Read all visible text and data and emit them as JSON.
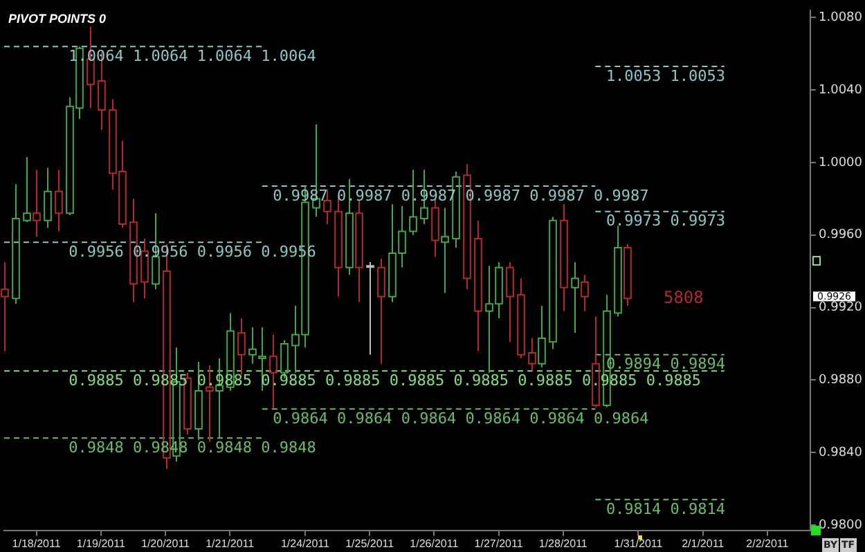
{
  "chart_data": {
    "type": "candlestick",
    "title": "PIVOT POINTS 0",
    "categories": [
      null,
      null,
      null,
      "1/18/2011",
      null,
      null,
      null,
      null,
      null,
      "1/19/2011",
      null,
      null,
      null,
      null,
      null,
      "1/20/2011",
      null,
      null,
      null,
      null,
      null,
      "1/21/2011",
      null,
      null,
      null,
      null,
      null,
      null,
      "1/24/2011",
      null,
      null,
      null,
      null,
      null,
      "1/25/2011",
      null,
      null,
      null,
      null,
      null,
      "1/26/2011",
      null,
      null,
      null,
      null,
      null,
      "1/27/2011",
      null,
      null,
      null,
      null,
      null,
      "1/28/2011",
      null,
      null,
      null,
      null,
      null,
      null,
      "1/31/2011",
      null,
      null,
      null,
      null,
      null,
      "2/1/2011",
      null,
      null,
      null,
      null,
      null,
      "2/2/2011",
      null,
      null,
      null,
      null
    ],
    "ohlc": [
      [
        0.993,
        0.9945,
        0.9896,
        0.9926
      ],
      [
        0.9925,
        0.9988,
        0.9922,
        0.9969
      ],
      [
        0.9968,
        1.0003,
        0.9967,
        0.9972
      ],
      [
        0.9972,
        0.9996,
        0.9959,
        0.9968
      ],
      [
        0.9968,
        0.9997,
        0.9964,
        0.9984
      ],
      [
        0.9984,
        0.9996,
        0.9962,
        0.9972
      ],
      [
        0.9972,
        1.0036,
        0.9971,
        1.0031
      ],
      [
        1.003,
        1.0064,
        1.0024,
        1.0063
      ],
      [
        1.0057,
        1.0075,
        1.003,
        1.0043
      ],
      [
        1.0045,
        1.0061,
        1.0018,
        1.0029
      ],
      [
        1.0029,
        1.0035,
        0.9985,
        0.9994
      ],
      [
        0.9995,
        1.0012,
        0.9964,
        0.9966
      ],
      [
        0.9967,
        0.998,
        0.9923,
        0.9933
      ],
      [
        0.9951,
        0.9958,
        0.9925,
        0.9934
      ],
      [
        0.9933,
        0.9972,
        0.993,
        0.9948
      ],
      [
        0.994,
        0.9955,
        0.9831,
        0.9837
      ],
      [
        0.9838,
        0.9898,
        0.9835,
        0.9879
      ],
      [
        0.9881,
        0.9884,
        0.985,
        0.9853
      ],
      [
        0.9853,
        0.989,
        0.9847,
        0.9874
      ],
      [
        0.9876,
        0.9888,
        0.9846,
        0.9874
      ],
      [
        0.9874,
        0.9892,
        0.9848,
        0.9877
      ],
      [
        0.9876,
        0.9917,
        0.9874,
        0.9907
      ],
      [
        0.9906,
        0.9914,
        0.9883,
        0.9894
      ],
      [
        0.9894,
        0.9909,
        0.9889,
        0.9897
      ],
      [
        0.9892,
        0.9909,
        0.9874,
        0.9893
      ],
      [
        0.9893,
        0.9905,
        0.9864,
        0.9884
      ],
      [
        0.9884,
        0.9902,
        0.9881,
        0.99
      ],
      [
        0.9899,
        0.9921,
        0.9884,
        0.9905
      ],
      [
        0.9905,
        0.9987,
        0.9898,
        0.9978
      ],
      [
        0.9975,
        1.0021,
        0.997,
        0.998
      ],
      [
        0.9979,
        0.9985,
        0.9966,
        0.9973
      ],
      [
        0.9973,
        0.9982,
        0.9926,
        0.9942
      ],
      [
        0.9942,
        0.9991,
        0.9938,
        0.9972
      ],
      [
        0.9972,
        0.9979,
        0.9923,
        0.9942
      ],
      [
        0.9943,
        0.9945,
        0.9894,
        0.9943
      ],
      [
        0.9942,
        0.9947,
        0.9889,
        0.9926
      ],
      [
        0.9926,
        0.9977,
        0.9923,
        0.995
      ],
      [
        0.995,
        0.9976,
        0.9942,
        0.9962
      ],
      [
        0.9962,
        0.9996,
        0.996,
        0.997
      ],
      [
        0.9969,
        0.9996,
        0.9966,
        0.9975
      ],
      [
        0.9975,
        0.998,
        0.9948,
        0.9957
      ],
      [
        0.9956,
        0.9975,
        0.9928,
        0.9959
      ],
      [
        0.9958,
        0.9995,
        0.9953,
        0.9992
      ],
      [
        0.9993,
        0.9999,
        0.993,
        0.9936
      ],
      [
        0.9958,
        0.9968,
        0.9896,
        0.9918
      ],
      [
        0.9918,
        0.9943,
        0.9884,
        0.9922
      ],
      [
        0.9922,
        0.9945,
        0.9914,
        0.9942
      ],
      [
        0.9942,
        0.9945,
        0.9901,
        0.9926
      ],
      [
        0.9927,
        0.9936,
        0.9892,
        0.9894
      ],
      [
        0.9895,
        0.9903,
        0.9885,
        0.9889
      ],
      [
        0.9889,
        0.9921,
        0.9887,
        0.9903
      ],
      [
        0.9901,
        0.997,
        0.9897,
        0.9968
      ],
      [
        0.9968,
        0.9977,
        0.9918,
        0.9931
      ],
      [
        0.9931,
        0.9945,
        0.9906,
        0.9936
      ],
      [
        0.9934,
        0.9938,
        0.9918,
        0.9926
      ],
      [
        0.9889,
        0.9915,
        0.9865,
        0.9866
      ],
      [
        0.9866,
        0.9927,
        0.9865,
        0.9918
      ],
      [
        0.9917,
        0.9965,
        0.9915,
        0.9953
      ],
      [
        0.9953,
        0.9955,
        0.9921,
        0.9925
      ],
      null,
      null,
      null,
      null,
      null,
      null,
      null,
      null,
      null,
      null,
      null,
      null,
      null,
      null,
      null,
      null,
      null
    ],
    "colors": [
      "#b52a2a",
      "#44a844",
      "#44a844",
      "#b52a2a",
      "#44a844",
      "#b52a2a",
      "#44a844",
      "#44a844",
      "#b52a2a",
      "#b52a2a",
      "#b52a2a",
      "#b52a2a",
      "#b52a2a",
      "#b52a2a",
      "#44a844",
      "#b52a2a",
      "#44a844",
      "#b52a2a",
      "#44a844",
      "#b52a2a",
      "#44a844",
      "#44a844",
      "#b52a2a",
      "#44a844",
      "#44a844",
      "#b52a2a",
      "#44a844",
      "#44a844",
      "#44a844",
      "#44a844",
      "#b52a2a",
      "#b52a2a",
      "#44a844",
      "#b52a2a",
      "#bbbbbb",
      "#b52a2a",
      "#44a844",
      "#44a844",
      "#44a844",
      "#44a844",
      "#b52a2a",
      "#44a844",
      "#44a844",
      "#b52a2a",
      "#b52a2a",
      "#44a844",
      "#44a844",
      "#b52a2a",
      "#b52a2a",
      "#b52a2a",
      "#44a844",
      "#44a844",
      "#b52a2a",
      "#44a844",
      "#b52a2a",
      "#b52a2a",
      "#44a844",
      "#44a844",
      "#b52a2a",
      null,
      null,
      null,
      null,
      null,
      null,
      null,
      null,
      null,
      null,
      null,
      null,
      null,
      null,
      null,
      null,
      null
    ],
    "series": [
      {
        "type": "line",
        "color": "#8cc8c8",
        "line_style": "dashed",
        "values": [
          1.0064,
          1.0064,
          1.0064,
          1.0064,
          1.0064,
          1.0064,
          1.0064,
          1.0064,
          1.0064,
          1.0064,
          1.0064,
          1.0064,
          1.0064,
          1.0064,
          1.0064,
          1.0064,
          1.0064,
          1.0064,
          1.0064,
          1.0064,
          1.0064,
          1.0064,
          1.0064,
          1.0064,
          1.0064,
          null,
          null,
          null,
          null,
          null,
          null,
          null,
          null,
          null,
          null,
          null,
          null,
          null,
          null,
          null,
          null,
          null,
          null,
          null,
          null,
          null,
          null,
          null,
          null,
          null,
          null,
          null,
          null,
          null,
          null,
          null,
          null,
          null,
          null,
          null,
          null,
          null,
          null,
          null,
          null,
          null,
          null,
          null,
          null,
          null,
          null,
          null,
          null,
          null,
          null,
          null
        ],
        "value_labels": [
          null,
          null,
          null,
          null,
          null,
          null,
          "1.0064 1.0064 1.0064 1.0064",
          null,
          null,
          null,
          null,
          null,
          null,
          null,
          null,
          null,
          null,
          null,
          null,
          null,
          null,
          null,
          null,
          null,
          null,
          null,
          null,
          null,
          null,
          null,
          null,
          null,
          null,
          null,
          null,
          null,
          null,
          null,
          null,
          null,
          null,
          null,
          null,
          null,
          null,
          null,
          null,
          null,
          null,
          null,
          null,
          null,
          null,
          null,
          null,
          null,
          null,
          null,
          null,
          null,
          null,
          null,
          null,
          null,
          null,
          null,
          null,
          null,
          null,
          null,
          null,
          null,
          null,
          null,
          null,
          null
        ]
      },
      {
        "type": "line",
        "color": "#8cc8c8",
        "line_style": "dashed",
        "values": [
          0.9956,
          0.9956,
          0.9956,
          0.9956,
          0.9956,
          0.9956,
          0.9956,
          0.9956,
          0.9956,
          0.9956,
          0.9956,
          0.9956,
          0.9956,
          0.9956,
          0.9956,
          0.9956,
          0.9956,
          0.9956,
          0.9956,
          0.9956,
          0.9956,
          0.9956,
          0.9956,
          0.9956,
          0.9956,
          null,
          null,
          null,
          null,
          null,
          null,
          null,
          null,
          null,
          null,
          null,
          null,
          null,
          null,
          null,
          null,
          null,
          null,
          null,
          null,
          null,
          null,
          null,
          null,
          null,
          null,
          null,
          null,
          null,
          null,
          null,
          null,
          null,
          null,
          null,
          null,
          null,
          null,
          null,
          null,
          null,
          null,
          null,
          null,
          null,
          null,
          null,
          null,
          null,
          null,
          null
        ],
        "value_labels": [
          null,
          null,
          null,
          null,
          null,
          null,
          "0.9956 0.9956 0.9956 0.9956",
          null,
          null,
          null,
          null,
          null,
          null,
          null,
          null,
          null,
          null,
          null,
          null,
          null,
          null,
          null,
          null,
          null,
          null,
          null,
          null,
          null,
          null,
          null,
          null,
          null,
          null,
          null,
          null,
          null,
          null,
          null,
          null,
          null,
          null,
          null,
          null,
          null,
          null,
          null,
          null,
          null,
          null,
          null,
          null,
          null,
          null,
          null,
          null,
          null,
          null,
          null,
          null,
          null,
          null,
          null,
          null,
          null,
          null,
          null,
          null,
          null,
          null,
          null,
          null,
          null,
          null,
          null,
          null,
          null
        ]
      },
      {
        "type": "line",
        "color": "#8cc8c8",
        "line_style": "dashed",
        "values": [
          null,
          null,
          null,
          null,
          null,
          null,
          null,
          null,
          null,
          null,
          null,
          null,
          null,
          null,
          null,
          null,
          null,
          null,
          null,
          null,
          null,
          null,
          null,
          null,
          0.9987,
          0.9987,
          0.9987,
          0.9987,
          0.9987,
          0.9987,
          0.9987,
          0.9987,
          0.9987,
          0.9987,
          0.9987,
          0.9987,
          0.9987,
          0.9987,
          0.9987,
          0.9987,
          0.9987,
          0.9987,
          0.9987,
          0.9987,
          0.9987,
          0.9987,
          0.9987,
          0.9987,
          0.9987,
          0.9987,
          0.9987,
          0.9987,
          0.9987,
          0.9987,
          0.9987,
          0.9987,
          null,
          null,
          null,
          null,
          null,
          null,
          null,
          null,
          null,
          null,
          null,
          null,
          null,
          null,
          null,
          null,
          null,
          null,
          null,
          null
        ],
        "value_labels": [
          null,
          null,
          null,
          null,
          null,
          null,
          null,
          null,
          null,
          null,
          null,
          null,
          null,
          null,
          null,
          null,
          null,
          null,
          null,
          null,
          null,
          null,
          null,
          null,
          null,
          "0.9987 0.9987 0.9987 0.9987 0.9987 0.9987",
          null,
          null,
          null,
          null,
          null,
          null,
          null,
          null,
          null,
          null,
          null,
          null,
          null,
          null,
          null,
          null,
          null,
          null,
          null,
          null,
          null,
          null,
          null,
          null,
          null,
          null,
          null,
          null,
          null,
          null,
          null,
          null,
          null,
          null,
          null,
          null,
          null,
          null,
          null,
          null,
          null,
          null,
          null,
          null,
          null,
          null,
          null,
          null,
          null,
          null
        ]
      },
      {
        "type": "line",
        "color": "#8cc8c8",
        "line_style": "dashed",
        "values": [
          null,
          null,
          null,
          null,
          null,
          null,
          null,
          null,
          null,
          null,
          null,
          null,
          null,
          null,
          null,
          null,
          null,
          null,
          null,
          null,
          null,
          null,
          null,
          null,
          null,
          null,
          null,
          null,
          null,
          null,
          null,
          null,
          null,
          null,
          null,
          null,
          null,
          null,
          null,
          null,
          null,
          null,
          null,
          null,
          null,
          null,
          null,
          null,
          null,
          null,
          null,
          null,
          null,
          null,
          null,
          1.0053,
          1.0053,
          1.0053,
          1.0053,
          1.0053,
          1.0053,
          1.0053,
          1.0053,
          1.0053,
          1.0053,
          1.0053,
          1.0053,
          1.0053,
          null,
          null,
          null,
          null,
          null,
          null,
          null,
          null
        ],
        "value_labels": [
          null,
          null,
          null,
          null,
          null,
          null,
          null,
          null,
          null,
          null,
          null,
          null,
          null,
          null,
          null,
          null,
          null,
          null,
          null,
          null,
          null,
          null,
          null,
          null,
          null,
          null,
          null,
          null,
          null,
          null,
          null,
          null,
          null,
          null,
          null,
          null,
          null,
          null,
          null,
          null,
          null,
          null,
          null,
          null,
          null,
          null,
          null,
          null,
          null,
          null,
          null,
          null,
          null,
          null,
          null,
          null,
          "1.0053 1.0053",
          null,
          null,
          null,
          null,
          null,
          null,
          null,
          null,
          null,
          null,
          null,
          null,
          null,
          null,
          null,
          null,
          null,
          null,
          null
        ]
      },
      {
        "type": "line",
        "color": "#8cc8c8",
        "line_style": "dashed",
        "values": [
          null,
          null,
          null,
          null,
          null,
          null,
          null,
          null,
          null,
          null,
          null,
          null,
          null,
          null,
          null,
          null,
          null,
          null,
          null,
          null,
          null,
          null,
          null,
          null,
          null,
          null,
          null,
          null,
          null,
          null,
          null,
          null,
          null,
          null,
          null,
          null,
          null,
          null,
          null,
          null,
          null,
          null,
          null,
          null,
          null,
          null,
          null,
          null,
          null,
          null,
          null,
          null,
          null,
          null,
          null,
          0.9973,
          0.9973,
          0.9973,
          0.9973,
          0.9973,
          0.9973,
          0.9973,
          0.9973,
          0.9973,
          0.9973,
          0.9973,
          0.9973,
          0.9973,
          null,
          null,
          null,
          null,
          null,
          null,
          null,
          null
        ],
        "value_labels": [
          null,
          null,
          null,
          null,
          null,
          null,
          null,
          null,
          null,
          null,
          null,
          null,
          null,
          null,
          null,
          null,
          null,
          null,
          null,
          null,
          null,
          null,
          null,
          null,
          null,
          null,
          null,
          null,
          null,
          null,
          null,
          null,
          null,
          null,
          null,
          null,
          null,
          null,
          null,
          null,
          null,
          null,
          null,
          null,
          null,
          null,
          null,
          null,
          null,
          null,
          null,
          null,
          null,
          null,
          null,
          null,
          "0.9973 0.9973",
          null,
          null,
          null,
          null,
          null,
          null,
          null,
          null,
          null,
          null,
          null,
          null,
          null,
          null,
          null,
          null,
          null,
          null,
          null
        ]
      },
      {
        "type": "line",
        "color": "#80e080",
        "line_style": "dashed",
        "values": [
          0.9885,
          0.9885,
          0.9885,
          0.9885,
          0.9885,
          0.9885,
          0.9885,
          0.9885,
          0.9885,
          0.9885,
          0.9885,
          0.9885,
          0.9885,
          0.9885,
          0.9885,
          0.9885,
          0.9885,
          0.9885,
          0.9885,
          0.9885,
          0.9885,
          0.9885,
          0.9885,
          0.9885,
          0.9885,
          0.9885,
          0.9885,
          0.9885,
          0.9885,
          0.9885,
          0.9885,
          0.9885,
          0.9885,
          0.9885,
          0.9885,
          0.9885,
          0.9885,
          0.9885,
          0.9885,
          0.9885,
          0.9885,
          0.9885,
          0.9885,
          0.9885,
          0.9885,
          0.9885,
          0.9885,
          0.9885,
          0.9885,
          0.9885,
          0.9885,
          0.9885,
          0.9885,
          0.9885,
          0.9885,
          0.9885,
          0.9885,
          0.9885,
          0.9885,
          0.9885,
          0.9885,
          0.9885,
          0.9885,
          0.9885,
          0.9885,
          0.9885,
          0.9885,
          0.9885,
          null,
          null,
          null,
          null,
          null,
          null,
          null,
          null
        ],
        "value_labels": [
          null,
          null,
          null,
          null,
          null,
          null,
          "0.9885 0.9885 0.9885 0.9885 0.9885 0.9885 0.9885 0.9885 0.9885 0.9885",
          null,
          null,
          null,
          null,
          null,
          null,
          null,
          null,
          null,
          null,
          null,
          null,
          null,
          null,
          null,
          null,
          null,
          null,
          null,
          null,
          null,
          null,
          null,
          null,
          null,
          null,
          null,
          null,
          null,
          null,
          null,
          null,
          null,
          null,
          null,
          null,
          null,
          null,
          null,
          null,
          null,
          null,
          null,
          null,
          null,
          null,
          null,
          null,
          null,
          null,
          null,
          null,
          null,
          null,
          null,
          null,
          null,
          null,
          null,
          null,
          null,
          null,
          null,
          null,
          null,
          null,
          null,
          null,
          null
        ]
      },
      {
        "type": "line",
        "color": "#6cbc6c",
        "line_style": "dashed",
        "values": [
          0.9848,
          0.9848,
          0.9848,
          0.9848,
          0.9848,
          0.9848,
          0.9848,
          0.9848,
          0.9848,
          0.9848,
          0.9848,
          0.9848,
          0.9848,
          0.9848,
          0.9848,
          0.9848,
          0.9848,
          0.9848,
          0.9848,
          0.9848,
          0.9848,
          0.9848,
          0.9848,
          0.9848,
          0.9848,
          null,
          null,
          null,
          null,
          null,
          null,
          null,
          null,
          null,
          null,
          null,
          null,
          null,
          null,
          null,
          null,
          null,
          null,
          null,
          null,
          null,
          null,
          null,
          null,
          null,
          null,
          null,
          null,
          null,
          null,
          null,
          null,
          null,
          null,
          null,
          null,
          null,
          null,
          null,
          null,
          null,
          null,
          null,
          null,
          null,
          null,
          null,
          null,
          null,
          null,
          null
        ],
        "value_labels": [
          null,
          null,
          null,
          null,
          null,
          null,
          "0.9848 0.9848 0.9848 0.9848",
          null,
          null,
          null,
          null,
          null,
          null,
          null,
          null,
          null,
          null,
          null,
          null,
          null,
          null,
          null,
          null,
          null,
          null,
          null,
          null,
          null,
          null,
          null,
          null,
          null,
          null,
          null,
          null,
          null,
          null,
          null,
          null,
          null,
          null,
          null,
          null,
          null,
          null,
          null,
          null,
          null,
          null,
          null,
          null,
          null,
          null,
          null,
          null,
          null,
          null,
          null,
          null,
          null,
          null,
          null,
          null,
          null,
          null,
          null,
          null,
          null,
          null,
          null,
          null,
          null,
          null,
          null,
          null,
          null
        ]
      },
      {
        "type": "line",
        "color": "#6cbc6c",
        "line_style": "dashed",
        "values": [
          null,
          null,
          null,
          null,
          null,
          null,
          null,
          null,
          null,
          null,
          null,
          null,
          null,
          null,
          null,
          null,
          null,
          null,
          null,
          null,
          null,
          null,
          null,
          null,
          0.9864,
          0.9864,
          0.9864,
          0.9864,
          0.9864,
          0.9864,
          0.9864,
          0.9864,
          0.9864,
          0.9864,
          0.9864,
          0.9864,
          0.9864,
          0.9864,
          0.9864,
          0.9864,
          0.9864,
          0.9864,
          0.9864,
          0.9864,
          0.9864,
          0.9864,
          0.9864,
          0.9864,
          0.9864,
          0.9864,
          0.9864,
          0.9864,
          0.9864,
          0.9864,
          0.9864,
          0.9864,
          null,
          null,
          null,
          null,
          null,
          null,
          null,
          null,
          null,
          null,
          null,
          null,
          null,
          null,
          null,
          null,
          null,
          null,
          null,
          null
        ],
        "value_labels": [
          null,
          null,
          null,
          null,
          null,
          null,
          null,
          null,
          null,
          null,
          null,
          null,
          null,
          null,
          null,
          null,
          null,
          null,
          null,
          null,
          null,
          null,
          null,
          null,
          null,
          "0.9864 0.9864 0.9864 0.9864 0.9864 0.9864",
          null,
          null,
          null,
          null,
          null,
          null,
          null,
          null,
          null,
          null,
          null,
          null,
          null,
          null,
          null,
          null,
          null,
          null,
          null,
          null,
          null,
          null,
          null,
          null,
          null,
          null,
          null,
          null,
          null,
          null,
          null,
          null,
          null,
          null,
          null,
          null,
          null,
          null,
          null,
          null,
          null,
          null,
          null,
          null,
          null,
          null,
          null,
          null,
          null,
          null
        ]
      },
      {
        "type": "line",
        "color": "#6cbc6c",
        "line_style": "dashed",
        "values": [
          null,
          null,
          null,
          null,
          null,
          null,
          null,
          null,
          null,
          null,
          null,
          null,
          null,
          null,
          null,
          null,
          null,
          null,
          null,
          null,
          null,
          null,
          null,
          null,
          null,
          null,
          null,
          null,
          null,
          null,
          null,
          null,
          null,
          null,
          null,
          null,
          null,
          null,
          null,
          null,
          null,
          null,
          null,
          null,
          null,
          null,
          null,
          null,
          null,
          null,
          null,
          null,
          null,
          null,
          null,
          0.9894,
          0.9894,
          0.9894,
          0.9894,
          0.9894,
          0.9894,
          0.9894,
          0.9894,
          0.9894,
          0.9894,
          0.9894,
          0.9894,
          0.9894,
          null,
          null,
          null,
          null,
          null,
          null,
          null,
          null
        ],
        "value_labels": [
          null,
          null,
          null,
          null,
          null,
          null,
          null,
          null,
          null,
          null,
          null,
          null,
          null,
          null,
          null,
          null,
          null,
          null,
          null,
          null,
          null,
          null,
          null,
          null,
          null,
          null,
          null,
          null,
          null,
          null,
          null,
          null,
          null,
          null,
          null,
          null,
          null,
          null,
          null,
          null,
          null,
          null,
          null,
          null,
          null,
          null,
          null,
          null,
          null,
          null,
          null,
          null,
          null,
          null,
          null,
          null,
          "0.9894 0.9894",
          null,
          null,
          null,
          null,
          null,
          null,
          null,
          null,
          null,
          null,
          null,
          null,
          null,
          null,
          null,
          null,
          null,
          null,
          null
        ]
      },
      {
        "type": "line",
        "color": "#6cbc6c",
        "line_style": "dashed",
        "values": [
          null,
          null,
          null,
          null,
          null,
          null,
          null,
          null,
          null,
          null,
          null,
          null,
          null,
          null,
          null,
          null,
          null,
          null,
          null,
          null,
          null,
          null,
          null,
          null,
          null,
          null,
          null,
          null,
          null,
          null,
          null,
          null,
          null,
          null,
          null,
          null,
          null,
          null,
          null,
          null,
          null,
          null,
          null,
          null,
          null,
          null,
          null,
          null,
          null,
          null,
          null,
          null,
          null,
          null,
          null,
          0.9814,
          0.9814,
          0.9814,
          0.9814,
          0.9814,
          0.9814,
          0.9814,
          0.9814,
          0.9814,
          0.9814,
          0.9814,
          0.9814,
          0.9814,
          null,
          null,
          null,
          null,
          null,
          null,
          null,
          null
        ],
        "value_labels": [
          null,
          null,
          null,
          null,
          null,
          null,
          null,
          null,
          null,
          null,
          null,
          null,
          null,
          null,
          null,
          null,
          null,
          null,
          null,
          null,
          null,
          null,
          null,
          null,
          null,
          null,
          null,
          null,
          null,
          null,
          null,
          null,
          null,
          null,
          null,
          null,
          null,
          null,
          null,
          null,
          null,
          null,
          null,
          null,
          null,
          null,
          null,
          null,
          null,
          null,
          null,
          null,
          null,
          null,
          null,
          null,
          "0.9814 0.9814",
          null,
          null,
          null,
          null,
          null,
          null,
          null,
          null,
          null,
          null,
          null,
          null,
          null,
          null,
          null,
          null,
          null,
          null,
          null
        ]
      }
    ],
    "ylim": [
      0.9797,
      1.0084
    ],
    "yticks": [
      {
        "value": 0.98,
        "label": "0.9800"
      },
      {
        "value": 0.984,
        "label": "0.9840"
      },
      {
        "value": 0.988,
        "label": "0.9880"
      },
      {
        "value": 0.992,
        "label": "0.9920"
      },
      {
        "value": 0.996,
        "label": "0.9960"
      },
      {
        "value": 1.0,
        "label": "1.0000"
      },
      {
        "value": 1.004,
        "label": "1.0040"
      },
      {
        "value": 1.008,
        "label": "1.0080"
      }
    ],
    "marker": "none",
    "annotations": [
      "5808",
      "0.9926",
      "BY",
      "TF"
    ]
  }
}
